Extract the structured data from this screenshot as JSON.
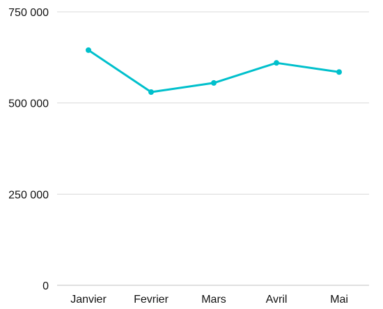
{
  "chart_data": {
    "type": "line",
    "categories": [
      "Janvier",
      "Fevrier",
      "Mars",
      "Avril",
      "Mai"
    ],
    "series": [
      {
        "values": [
          645000,
          530000,
          555000,
          610000,
          585000
        ],
        "color": "#00c0cc"
      }
    ],
    "yticks": [
      0,
      250000,
      500000,
      750000
    ],
    "ytick_labels": [
      "0",
      "250 000",
      "500 000",
      "750 000"
    ],
    "ylim": [
      0,
      750000
    ],
    "grid": true,
    "legend": "none",
    "gridline_color": "#d9d9d9",
    "axis_color": "#bfbfbf"
  }
}
